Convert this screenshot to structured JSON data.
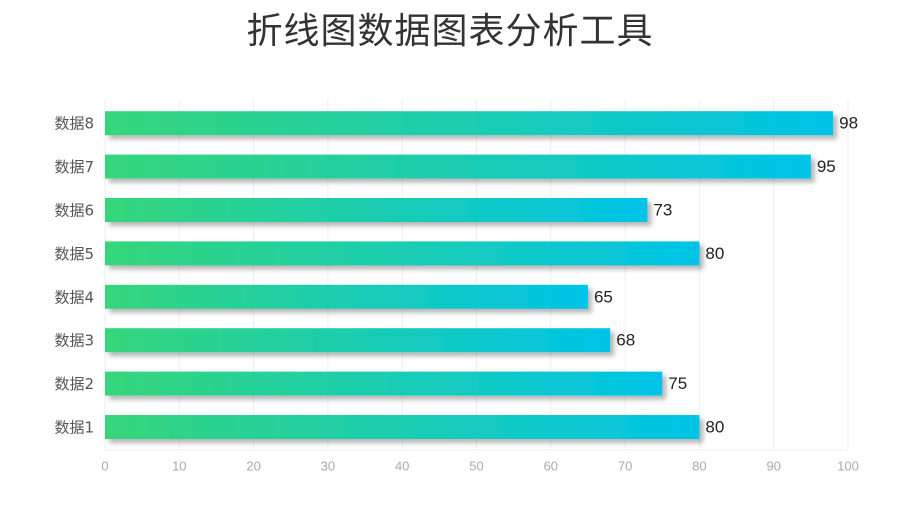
{
  "title": "折线图数据图表分析工具",
  "chart_data": {
    "type": "bar",
    "orientation": "horizontal",
    "categories": [
      "数据1",
      "数据2",
      "数据3",
      "数据4",
      "数据5",
      "数据6",
      "数据7",
      "数据8"
    ],
    "values": [
      80,
      75,
      68,
      65,
      80,
      73,
      95,
      98
    ],
    "xlim": [
      0,
      100
    ],
    "xticks": [
      0,
      10,
      20,
      30,
      40,
      50,
      60,
      70,
      80,
      90,
      100
    ],
    "grid": true,
    "legend": "none",
    "data_labels": true,
    "colors": {
      "bar_start": "#35d67a",
      "bar_end": "#00c4e8",
      "grid": "#eeeeee",
      "tick_text": "#aaaaaa",
      "category_text": "#555555",
      "value_text": "#222222"
    }
  }
}
